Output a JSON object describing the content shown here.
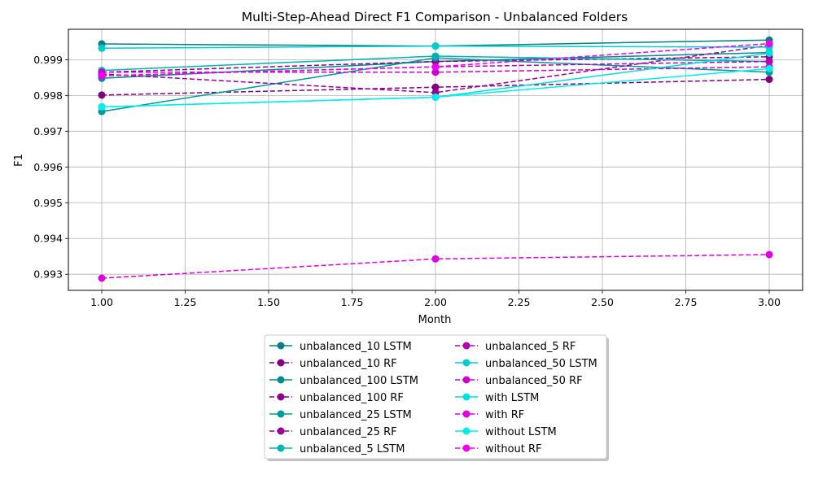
{
  "chart_data": {
    "type": "line",
    "title": "Multi-Step-Ahead Direct F1 Comparison - Unbalanced Folders",
    "xlabel": "Month",
    "ylabel": "F1",
    "x": [
      1,
      2,
      3
    ],
    "xlim": [
      0.9,
      3.1
    ],
    "ylim": [
      0.99255,
      0.99985
    ],
    "xticks": [
      1.0,
      1.25,
      1.5,
      1.75,
      2.0,
      2.25,
      2.5,
      2.75,
      3.0
    ],
    "xtick_labels": [
      "1.00",
      "1.25",
      "1.50",
      "1.75",
      "2.00",
      "2.25",
      "2.50",
      "2.75",
      "3.00"
    ],
    "yticks": [
      0.993,
      0.994,
      0.995,
      0.996,
      0.997,
      0.998,
      0.999
    ],
    "ytick_labels": [
      "0.993",
      "0.994",
      "0.995",
      "0.996",
      "0.997",
      "0.998",
      "0.999"
    ],
    "grid": true,
    "legend_position": "below",
    "series": [
      {
        "name": "unbalanced_10 LSTM",
        "values": [
          0.99944,
          0.99938,
          0.99955
        ],
        "color": "#008080",
        "dashed": false
      },
      {
        "name": "unbalanced_10 RF",
        "values": [
          0.99801,
          0.99823,
          0.99845
        ],
        "color": "#800080",
        "dashed": true
      },
      {
        "name": "unbalanced_100 LSTM",
        "values": [
          0.99848,
          0.99895,
          0.9992
        ],
        "color": "#008b8b",
        "dashed": false
      },
      {
        "name": "unbalanced_100 RF",
        "values": [
          0.99865,
          0.99895,
          0.99908
        ],
        "color": "#8b008b",
        "dashed": true
      },
      {
        "name": "unbalanced_25 LSTM",
        "values": [
          0.99755,
          0.99905,
          0.99865
        ],
        "color": "#009999",
        "dashed": false
      },
      {
        "name": "unbalanced_25 RF",
        "values": [
          0.9986,
          0.99808,
          0.9994
        ],
        "color": "#990099",
        "dashed": true
      },
      {
        "name": "unbalanced_5 LSTM",
        "values": [
          0.9987,
          0.9991,
          0.99895
        ],
        "color": "#00b3b3",
        "dashed": false
      },
      {
        "name": "unbalanced_5 RF",
        "values": [
          0.99855,
          0.9988,
          0.99895
        ],
        "color": "#b300b3",
        "dashed": true
      },
      {
        "name": "unbalanced_50 LSTM",
        "values": [
          0.99932,
          0.99938,
          0.99935
        ],
        "color": "#00cccc",
        "dashed": false
      },
      {
        "name": "unbalanced_50 RF",
        "values": [
          0.99865,
          0.99865,
          0.9988
        ],
        "color": "#cc00cc",
        "dashed": true
      },
      {
        "name": "with LSTM",
        "values": [
          0.99768,
          0.99795,
          0.99918
        ],
        "color": "#00dede",
        "dashed": false
      },
      {
        "name": "with RF",
        "values": [
          0.99289,
          0.99343,
          0.99355
        ],
        "color": "#de00de",
        "dashed": true
      },
      {
        "name": "without LSTM",
        "values": [
          0.99768,
          0.99795,
          0.99875
        ],
        "color": "#00eeee",
        "dashed": false
      },
      {
        "name": "without RF",
        "values": [
          0.99855,
          0.9988,
          0.99945
        ],
        "color": "#ee00ee",
        "dashed": true
      }
    ]
  }
}
